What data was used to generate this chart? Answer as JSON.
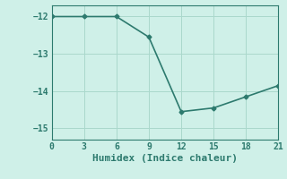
{
  "x": [
    0,
    3,
    6,
    9,
    12,
    15,
    18,
    21
  ],
  "y": [
    -12.0,
    -12.0,
    -12.0,
    -12.55,
    -14.55,
    -14.45,
    -14.15,
    -13.85
  ],
  "line_color": "#2d7a6e",
  "marker": "D",
  "marker_size": 2.5,
  "background_color": "#cff0e8",
  "grid_color": "#aad8cc",
  "xlabel": "Humidex (Indice chaleur)",
  "xlim": [
    0,
    21
  ],
  "ylim": [
    -15.3,
    -11.7
  ],
  "xticks": [
    0,
    3,
    6,
    9,
    12,
    15,
    18,
    21
  ],
  "yticks": [
    -15,
    -14,
    -13,
    -12
  ],
  "tick_color": "#2d7a6e",
  "xlabel_fontsize": 8,
  "tick_fontsize": 7,
  "line_width": 1.2
}
